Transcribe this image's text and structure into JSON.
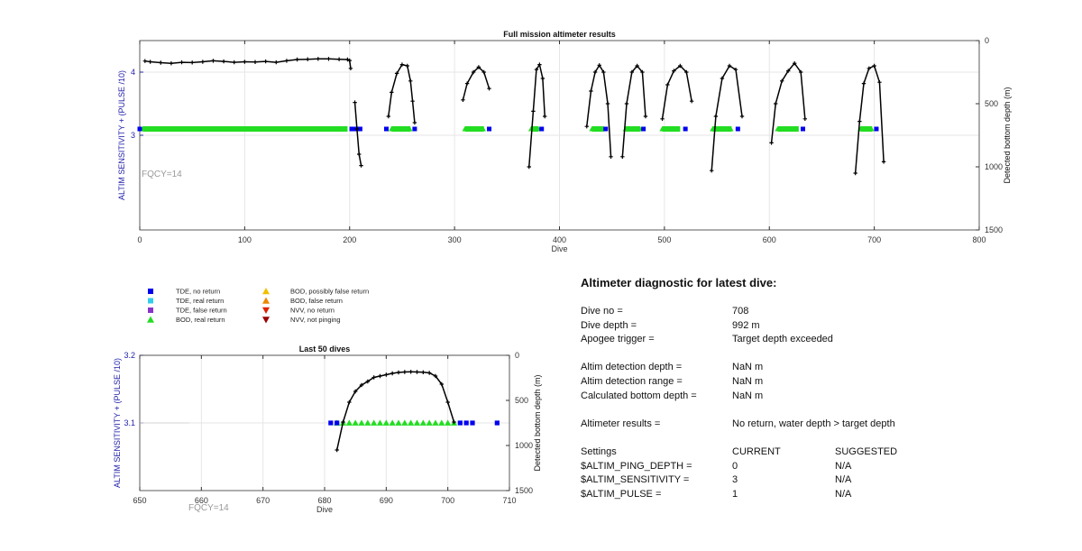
{
  "chart_data": [
    {
      "type": "scatter",
      "title": "Full mission altimeter results",
      "xlabel": "Dive",
      "ylabel_left": "ALTIM SENSITIVITY + (PULSE /10)",
      "ylabel_right": "Detected bottom depth (m)",
      "xlim": [
        0,
        800
      ],
      "ylim_left": [
        1.5,
        4.5
      ],
      "ylim_right": [
        1500,
        0
      ],
      "xticks": [
        "0",
        "100",
        "200",
        "300",
        "400",
        "500",
        "600",
        "700",
        "800"
      ],
      "yticks_left": [
        "3",
        "4"
      ],
      "yticks_right": [
        "0",
        "500",
        "1000",
        "1500"
      ],
      "annotation": "FQCY=14",
      "grid": true,
      "tde_no_return_dives": [
        0,
        202,
        206,
        210,
        235,
        262,
        333,
        383,
        444,
        480,
        520,
        570,
        632,
        702
      ],
      "bod_real_return_ranges": [
        [
          3,
          198
        ],
        [
          240,
          258
        ],
        [
          310,
          328
        ],
        [
          373,
          380
        ],
        [
          431,
          442
        ],
        [
          463,
          477
        ],
        [
          498,
          515
        ],
        [
          546,
          564
        ],
        [
          608,
          628
        ],
        [
          687,
          698
        ]
      ],
      "bottom_depth_segments": [
        {
          "x": [
            5,
            10,
            20,
            30,
            40,
            50,
            60,
            70,
            80,
            90,
            100,
            110,
            120,
            130,
            140,
            150,
            160,
            170,
            180,
            190,
            198,
            200,
            201
          ],
          "y": [
            162,
            168,
            175,
            180,
            172,
            174,
            168,
            160,
            165,
            172,
            168,
            170,
            165,
            172,
            160,
            150,
            148,
            145,
            145,
            148,
            150,
            158,
            220
          ]
        },
        {
          "x": [
            205,
            207,
            209,
            211
          ],
          "y": [
            490,
            700,
            900,
            990
          ]
        },
        {
          "x": [
            237,
            240,
            245,
            250,
            255,
            258,
            260,
            262
          ],
          "y": [
            600,
            410,
            260,
            190,
            200,
            320,
            480,
            650
          ]
        },
        {
          "x": [
            308,
            312,
            318,
            323,
            328,
            333
          ],
          "y": [
            470,
            340,
            250,
            210,
            250,
            380
          ]
        },
        {
          "x": [
            371,
            375,
            378,
            381,
            384,
            386
          ],
          "y": [
            1000,
            560,
            230,
            190,
            300,
            600
          ]
        },
        {
          "x": [
            426,
            430,
            434,
            438,
            442,
            446,
            449
          ],
          "y": [
            680,
            400,
            250,
            195,
            250,
            500,
            920
          ]
        },
        {
          "x": [
            460,
            464,
            469,
            474,
            479,
            482
          ],
          "y": [
            920,
            500,
            250,
            200,
            250,
            600
          ]
        },
        {
          "x": [
            498,
            503,
            509,
            515,
            521,
            526
          ],
          "y": [
            620,
            350,
            240,
            200,
            250,
            480
          ]
        },
        {
          "x": [
            545,
            549,
            555,
            562,
            568,
            574
          ],
          "y": [
            1030,
            600,
            300,
            200,
            230,
            600
          ]
        },
        {
          "x": [
            602,
            606,
            612,
            618,
            624,
            630,
            634
          ],
          "y": [
            810,
            500,
            320,
            240,
            180,
            250,
            620
          ]
        },
        {
          "x": [
            682,
            686,
            690,
            695,
            700,
            705,
            709
          ],
          "y": [
            1050,
            640,
            340,
            220,
            200,
            330,
            960
          ]
        }
      ]
    },
    {
      "type": "scatter",
      "title": "Last 50 dives",
      "xlabel": "Dive",
      "ylabel_left": "ALTIM SENSITIVITY + (PULSE /10)",
      "ylabel_right": "Detected bottom depth (m)",
      "xlim": [
        650,
        710
      ],
      "ylim_left": [
        3.0,
        3.2
      ],
      "ylim_right": [
        1500,
        0
      ],
      "xticks": [
        "650",
        "660",
        "670",
        "680",
        "690",
        "700",
        "710"
      ],
      "yticks_left": [
        "3.1",
        "3.2"
      ],
      "yticks_right": [
        "0",
        "500",
        "1000",
        "1500"
      ],
      "annotation": "FQCY=14",
      "grid": true,
      "tde_no_return": {
        "x": [
          681,
          682,
          702,
          703,
          704,
          708
        ],
        "y": [
          3.1,
          3.1,
          3.1,
          3.1,
          3.1,
          3.1
        ]
      },
      "bod_real_return": {
        "x": [
          682,
          683,
          684,
          685,
          686,
          687,
          688,
          689,
          690,
          691,
          692,
          693,
          694,
          695,
          696,
          697,
          698,
          699,
          700,
          701
        ],
        "y": [
          3.1,
          3.1,
          3.1,
          3.1,
          3.1,
          3.1,
          3.1,
          3.1,
          3.1,
          3.1,
          3.1,
          3.1,
          3.1,
          3.1,
          3.1,
          3.1,
          3.1,
          3.1,
          3.1,
          3.1
        ]
      },
      "bottom_depth": {
        "x": [
          682,
          683,
          684,
          685,
          686,
          687,
          688,
          689,
          690,
          691,
          692,
          693,
          694,
          695,
          696,
          697,
          698,
          699,
          700,
          701
        ],
        "y": [
          1050,
          740,
          520,
          400,
          330,
          290,
          245,
          230,
          215,
          200,
          190,
          185,
          183,
          185,
          188,
          195,
          230,
          320,
          520,
          740
        ]
      }
    }
  ],
  "legend": {
    "entries": [
      {
        "label": "TDE, no return",
        "marker": "square",
        "color": "#0000ee"
      },
      {
        "label": "TDE, real return",
        "marker": "square",
        "color": "#33ccee"
      },
      {
        "label": "TDE, false return",
        "marker": "square",
        "color": "#8833cc"
      },
      {
        "label": "BOD, real return",
        "marker": "triangle-up",
        "color": "#22dd22"
      },
      {
        "label": "BOD, possibly false return",
        "marker": "triangle-up",
        "color": "#f0c000"
      },
      {
        "label": "BOD, false return",
        "marker": "triangle-up",
        "color": "#ee8800"
      },
      {
        "label": "NVV, no return",
        "marker": "triangle-down",
        "color": "#dd2200"
      },
      {
        "label": "NVV, not pinging",
        "marker": "triangle-down",
        "color": "#990000"
      }
    ]
  },
  "diagnostic": {
    "title": "Altimeter diagnostic for latest dive:",
    "dive_no_label": "Dive no =",
    "dive_no": "708",
    "dive_depth_label": "Dive depth =",
    "dive_depth": "992 m",
    "apogee_label": "Apogee trigger =",
    "apogee": "Target depth exceeded",
    "altim_det_depth_label": "Altim detection depth =",
    "altim_det_depth": "NaN m",
    "altim_det_range_label": "Altim detection range =",
    "altim_det_range": "NaN m",
    "calc_bottom_label": "Calculated bottom depth =",
    "calc_bottom": "NaN m",
    "results_label": "Altimeter results =",
    "results": "No return, water depth > target depth",
    "settings_label": "Settings",
    "current_label": "CURRENT",
    "suggested_label": "SUGGESTED",
    "ping_depth_label": "$ALTIM_PING_DEPTH =",
    "ping_depth_current": "0",
    "ping_depth_suggested": "N/A",
    "sensitivity_label": "$ALTIM_SENSITIVITY =",
    "sensitivity_current": "3",
    "sensitivity_suggested": "N/A",
    "pulse_label": "$ALTIM_PULSE =",
    "pulse_current": "1",
    "pulse_suggested": "N/A"
  },
  "colors": {
    "left_axis": "#2222aa",
    "depth_line": "#000000",
    "grid": "#e6e6e6",
    "annotation": "#999999"
  }
}
